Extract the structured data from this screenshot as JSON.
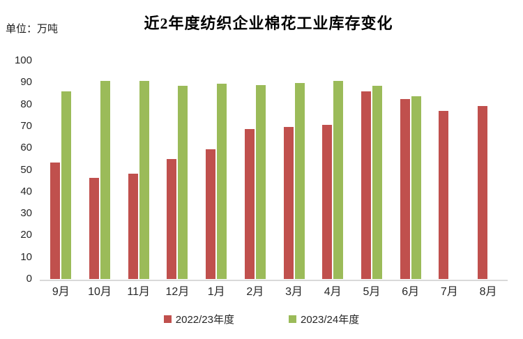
{
  "chart": {
    "title": "近2年度纺织企业棉花工业库存变化",
    "unit_label": "单位：万吨"
  },
  "chart_data": {
    "type": "bar",
    "title": "近2年度纺织企业棉花工业库存变化",
    "unit_label": "单位：万吨",
    "xlabel": "",
    "ylabel": "万吨",
    "ylim": [
      0,
      100
    ],
    "ytick_step": 10,
    "grid": false,
    "legend_position": "bottom",
    "categories": [
      "9月",
      "10月",
      "11月",
      "12月",
      "1月",
      "2月",
      "3月",
      "4月",
      "5月",
      "6月",
      "7月",
      "8月"
    ],
    "series": [
      {
        "name": "2022/23年度",
        "color": "#C0504D",
        "values": [
          53.5,
          46.4,
          48.3,
          55.0,
          59.5,
          68.6,
          69.6,
          70.6,
          85.8,
          82.5,
          76.9,
          79.1
        ]
      },
      {
        "name": "2023/24年度",
        "color": "#9BBB59",
        "values": [
          86.0,
          90.7,
          90.7,
          88.6,
          89.5,
          88.9,
          89.9,
          90.6,
          88.6,
          83.7,
          null,
          null
        ]
      }
    ]
  }
}
